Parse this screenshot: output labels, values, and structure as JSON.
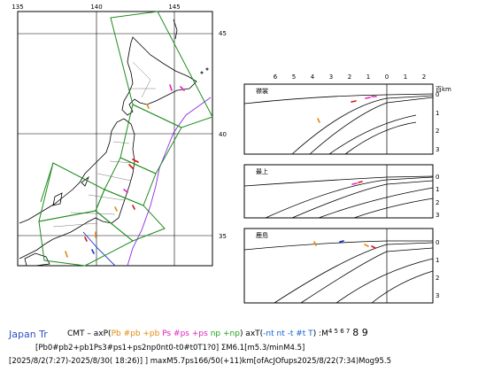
{
  "map": {
    "lon_ticks": [
      "135",
      "140",
      "145"
    ],
    "lat_ticks": [
      "45",
      "40",
      "35"
    ]
  },
  "sections": [
    {
      "label": "襟裳",
      "top_x_ticks": [
        "6",
        "5",
        "4",
        "3",
        "2",
        "1",
        "0",
        "1",
        "2"
      ],
      "unit": "百km",
      "depth_ticks": [
        "0",
        "1",
        "2",
        "3"
      ]
    },
    {
      "label": "最上",
      "depth_ticks": [
        "0",
        "1",
        "2",
        "3"
      ]
    },
    {
      "label": "鹿島",
      "depth_ticks": [
        "0",
        "1",
        "2",
        "3"
      ]
    }
  ],
  "colors": {
    "plate_boundary": "#1e8c1e",
    "sea_trough": "#8a2be2",
    "event_red": "#e01010",
    "event_magenta": "#e020c0",
    "event_orange": "#e08a10",
    "event_blue": "#1030d0",
    "label_blue": "#3050c0"
  },
  "caption": {
    "region": "Japan Tr",
    "cmt_prefix": "CMT  –  axP(",
    "pb1": "Pb #pb +pb",
    "ps1": "Ps #ps +ps",
    "np1": "np +np",
    "axT_prefix": ") axT(",
    "nt_part": "-nt nt -t #t T",
    "axT_suffix": ")  :M",
    "mag_small": "4 5 6 7",
    "mag_large": "8 9",
    "line2": "[Pb0#pb2+pb1Ps3#ps1+ps2np0nt0-t0#t0T1?0] ΣM6.1[m5.3/minM4.5]",
    "line3": "[2025/8/2(7:27)-2025/8/30( 18:26)] ] maxM5.7ps166/50(+11)km[ofAcJOfups2025/8/22(7:34)Mog95.5"
  }
}
